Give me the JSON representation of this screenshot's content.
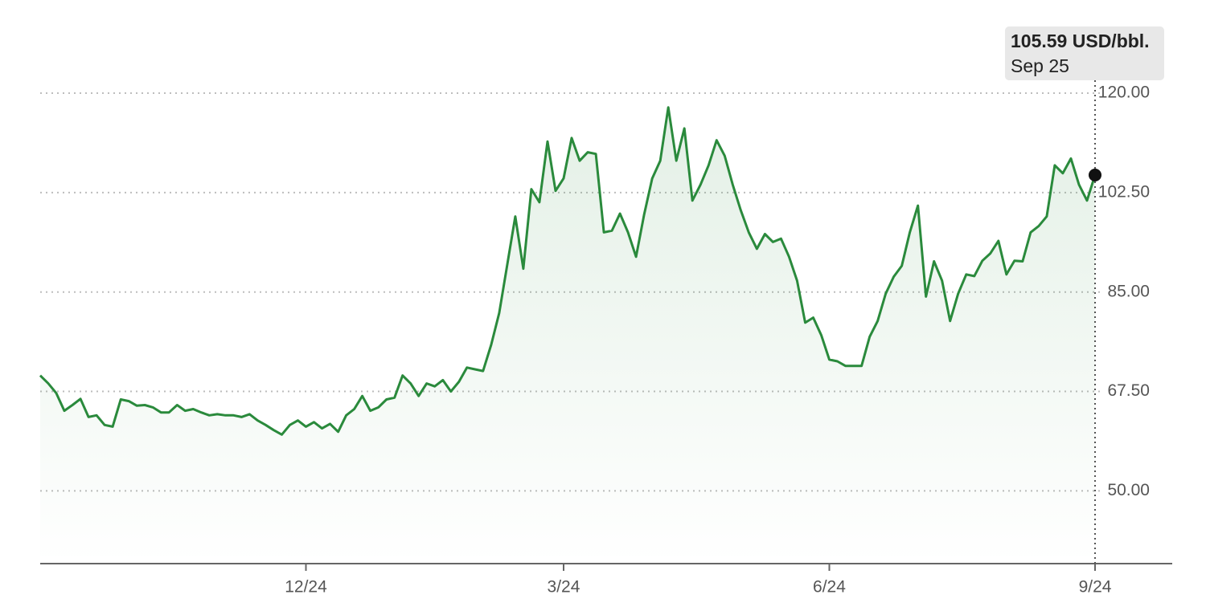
{
  "chart_data": {
    "type": "line",
    "categories": [
      null,
      null,
      null,
      null,
      null,
      null,
      null,
      null,
      null,
      null,
      null,
      null,
      null,
      null,
      null,
      null,
      null,
      null,
      null,
      null,
      null,
      null,
      null,
      null,
      null,
      null,
      null,
      null,
      null,
      null,
      null,
      null,
      null,
      "12/24",
      null,
      null,
      null,
      null,
      null,
      null,
      null,
      null,
      null,
      null,
      null,
      null,
      null,
      null,
      null,
      null,
      null,
      null,
      null,
      null,
      null,
      null,
      null,
      null,
      null,
      null,
      null,
      null,
      null,
      null,
      null,
      "3/24",
      null,
      null,
      null,
      null,
      null,
      null,
      null,
      null,
      null,
      null,
      null,
      null,
      null,
      null,
      null,
      null,
      null,
      null,
      null,
      null,
      null,
      null,
      null,
      null,
      null,
      null,
      null,
      null,
      null,
      null,
      null,
      null,
      "6/24",
      null,
      null,
      null,
      null,
      null,
      null,
      null,
      null,
      null,
      null,
      null,
      null,
      null,
      null,
      null,
      null,
      null,
      null,
      null,
      null,
      null,
      null,
      null,
      null,
      null,
      null,
      null,
      null,
      null,
      null,
      null,
      null,
      "9/24"
    ],
    "values": [
      70.3,
      68.9,
      67.2,
      64.1,
      65.1,
      66.2,
      63.0,
      63.3,
      61.6,
      61.3,
      66.1,
      65.8,
      65.0,
      65.1,
      64.7,
      63.8,
      63.8,
      65.1,
      64.1,
      64.4,
      63.8,
      63.3,
      63.5,
      63.3,
      63.3,
      63.0,
      63.5,
      62.4,
      61.6,
      60.7,
      59.9,
      61.6,
      62.4,
      61.3,
      62.1,
      61.0,
      61.8,
      60.4,
      63.3,
      64.4,
      66.7,
      64.1,
      64.7,
      66.1,
      66.4,
      70.3,
      68.9,
      66.7,
      68.9,
      68.4,
      69.5,
      67.5,
      69.2,
      71.7,
      71.4,
      71.1,
      75.7,
      81.3,
      89.8,
      98.3,
      89.1,
      103.1,
      100.8,
      111.5,
      102.8,
      105.0,
      112.1,
      108.1,
      109.6,
      109.3,
      95.5,
      95.8,
      98.8,
      95.5,
      91.2,
      98.6,
      105.0,
      108.1,
      117.5,
      108.1,
      113.8,
      101.1,
      103.9,
      107.3,
      111.7,
      109.0,
      103.9,
      99.4,
      95.5,
      92.6,
      95.2,
      93.8,
      94.4,
      91.2,
      87.0,
      79.6,
      80.5,
      77.4,
      73.1,
      72.8,
      72.0,
      72.0,
      72.0,
      77.1,
      79.9,
      84.7,
      87.7,
      89.6,
      95.5,
      100.2,
      84.2,
      90.4,
      87.0,
      79.9,
      84.7,
      88.1,
      87.8,
      90.5,
      91.8,
      94.0,
      88.1,
      90.5,
      90.4,
      95.5,
      96.6,
      98.3,
      107.3,
      105.9,
      108.5,
      103.9,
      101.1,
      105.59
    ],
    "color": "#2a8a3c",
    "ylim": [
      37.2,
      120
    ],
    "yticks": [
      {
        "value": 50,
        "label": "50.00"
      },
      {
        "value": 67.5,
        "label": "67.50"
      },
      {
        "value": 85,
        "label": "85.00"
      },
      {
        "value": 102.5,
        "label": "102.50"
      },
      {
        "value": 120,
        "label": "120.00"
      }
    ],
    "grid": true,
    "tooltip": {
      "text": "105.59 USD/bbl.",
      "date": "Sep 25"
    }
  }
}
